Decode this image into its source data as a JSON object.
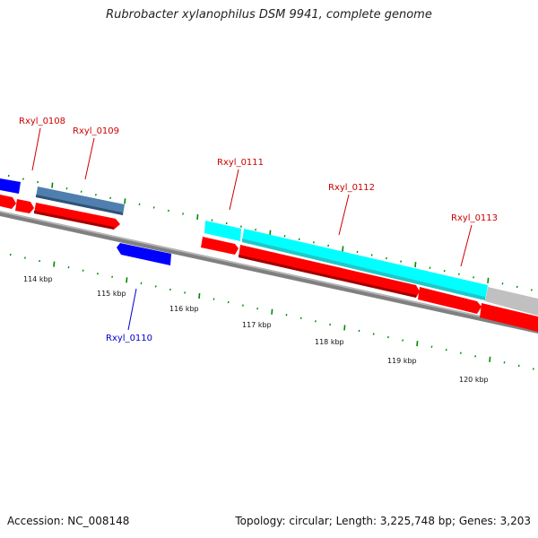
{
  "title": "Rubrobacter xylanophilus DSM 9941, complete genome",
  "footer": {
    "accession": "Accession: NC_008148",
    "topology": "Topology: circular; Length: 3,225,748 bp; Genes: 3,203"
  },
  "colors": {
    "forward_gene": "#ff0000",
    "reverse_gene": "#0000ff",
    "highlight_gene": "#00ffff",
    "steel_gene": "#4f7fae",
    "grey_gene": "#c0c0c0",
    "tick": "#008800",
    "backbone": "#808080"
  },
  "ruler": {
    "labels": [
      "114 kbp",
      "115 kbp",
      "116 kbp",
      "117 kbp",
      "118 kbp",
      "119 kbp",
      "120 kbp"
    ]
  },
  "gene_labels": [
    {
      "name": "Rxyl_0108",
      "strand": "forward"
    },
    {
      "name": "Rxyl_0109",
      "strand": "forward"
    },
    {
      "name": "Rxyl_0111",
      "strand": "forward"
    },
    {
      "name": "Rxyl_0112",
      "strand": "forward"
    },
    {
      "name": "Rxyl_0113",
      "strand": "forward"
    },
    {
      "name": "Rxyl_0110",
      "strand": "reverse"
    }
  ]
}
